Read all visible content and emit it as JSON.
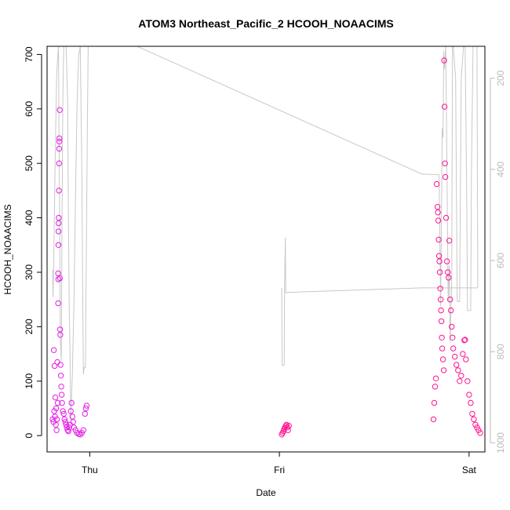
{
  "chart_data": {
    "type": "scatter",
    "title": "ATOM3 Northeast_Pacific_2 HCOOH_NOAACIMS",
    "xlabel": "Date",
    "ylabel": "HCOOH_NOAACIMS",
    "x_ticks": [
      "Thu",
      "Fri",
      "Sat"
    ],
    "x_tick_values": [
      24,
      48,
      72
    ],
    "xlim": [
      18.6,
      74.0
    ],
    "ylim": [
      -30,
      715
    ],
    "y_ticks": [
      0,
      100,
      200,
      300,
      400,
      500,
      600,
      700
    ],
    "y2_ticks": [
      200,
      400,
      600,
      800,
      1000
    ],
    "y2lim": [
      1020,
      130
    ],
    "grid": false,
    "legend": "none",
    "colors": {
      "points_light": "#e61ee6",
      "points_dark": "#ff1493",
      "pressure_line": "#c8c8c8",
      "right_axis": "#bbbbbb"
    },
    "series": [
      {
        "values": [
          [
            19.3,
            30
          ],
          [
            19.4,
            25
          ],
          [
            19.45,
            157
          ],
          [
            19.5,
            45
          ],
          [
            19.55,
            128
          ],
          [
            19.6,
            35
          ],
          [
            19.65,
            70
          ],
          [
            19.7,
            20
          ],
          [
            19.75,
            50
          ],
          [
            19.8,
            10
          ],
          [
            19.85,
            30
          ],
          [
            19.9,
            135
          ],
          [
            19.95,
            60
          ],
          [
            20.0,
            243
          ],
          [
            20.0,
            298
          ],
          [
            20.02,
            287
          ],
          [
            20.04,
            350
          ],
          [
            20.05,
            375
          ],
          [
            20.06,
            390
          ],
          [
            20.08,
            400
          ],
          [
            20.1,
            450
          ],
          [
            20.12,
            500
          ],
          [
            20.13,
            527
          ],
          [
            20.15,
            540
          ],
          [
            20.16,
            546
          ],
          [
            20.2,
            598
          ],
          [
            20.22,
            289
          ],
          [
            20.25,
            195
          ],
          [
            20.28,
            185
          ],
          [
            20.3,
            130
          ],
          [
            20.35,
            110
          ],
          [
            20.4,
            90
          ],
          [
            20.45,
            75
          ],
          [
            20.5,
            60
          ],
          [
            20.6,
            45
          ],
          [
            20.7,
            40
          ],
          [
            20.8,
            30
          ],
          [
            20.9,
            25
          ],
          [
            21.0,
            20
          ],
          [
            21.1,
            15
          ],
          [
            21.2,
            10
          ],
          [
            21.3,
            8
          ],
          [
            21.4,
            15
          ],
          [
            21.5,
            20
          ],
          [
            21.6,
            45
          ],
          [
            21.7,
            60
          ],
          [
            21.8,
            35
          ],
          [
            21.9,
            25
          ],
          [
            22.0,
            15
          ],
          [
            22.2,
            10
          ],
          [
            22.4,
            5
          ],
          [
            22.6,
            3
          ],
          [
            22.8,
            2
          ],
          [
            23.0,
            5
          ],
          [
            23.2,
            10
          ],
          [
            23.4,
            40
          ],
          [
            23.5,
            50
          ],
          [
            23.6,
            55
          ]
        ]
      },
      {
        "values": [
          [
            48.3,
            2
          ],
          [
            48.4,
            5
          ],
          [
            48.5,
            8
          ],
          [
            48.6,
            12
          ],
          [
            48.7,
            15
          ],
          [
            48.8,
            18
          ],
          [
            48.9,
            20
          ],
          [
            49.0,
            15
          ],
          [
            49.1,
            10
          ],
          [
            49.2,
            18
          ]
        ]
      },
      {
        "values": [
          [
            67.5,
            30
          ],
          [
            67.6,
            60
          ],
          [
            67.7,
            90
          ],
          [
            67.8,
            105
          ],
          [
            67.9,
            462
          ],
          [
            68.0,
            420
          ],
          [
            68.05,
            410
          ],
          [
            68.1,
            395
          ],
          [
            68.15,
            360
          ],
          [
            68.2,
            330
          ],
          [
            68.25,
            320
          ],
          [
            68.3,
            300
          ],
          [
            68.35,
            270
          ],
          [
            68.4,
            250
          ],
          [
            68.45,
            230
          ],
          [
            68.5,
            210
          ],
          [
            68.55,
            180
          ],
          [
            68.6,
            160
          ],
          [
            68.7,
            140
          ],
          [
            68.8,
            120
          ],
          [
            68.85,
            689
          ],
          [
            68.9,
            604
          ],
          [
            68.95,
            500
          ],
          [
            69.0,
            475
          ],
          [
            69.1,
            400
          ],
          [
            69.2,
            320
          ],
          [
            69.3,
            300
          ],
          [
            69.4,
            290
          ],
          [
            69.5,
            358
          ],
          [
            69.6,
            250
          ],
          [
            69.7,
            230
          ],
          [
            69.8,
            200
          ],
          [
            69.9,
            180
          ],
          [
            70.0,
            160
          ],
          [
            70.2,
            145
          ],
          [
            70.4,
            130
          ],
          [
            70.6,
            120
          ],
          [
            70.8,
            100
          ],
          [
            71.0,
            110
          ],
          [
            71.2,
            150
          ],
          [
            71.4,
            175
          ],
          [
            71.5,
            176
          ],
          [
            71.6,
            140
          ],
          [
            71.8,
            100
          ],
          [
            72.0,
            75
          ],
          [
            72.2,
            60
          ],
          [
            72.4,
            40
          ],
          [
            72.6,
            30
          ],
          [
            72.8,
            20
          ],
          [
            73.0,
            15
          ],
          [
            73.2,
            10
          ],
          [
            73.4,
            5
          ]
        ]
      }
    ]
  }
}
